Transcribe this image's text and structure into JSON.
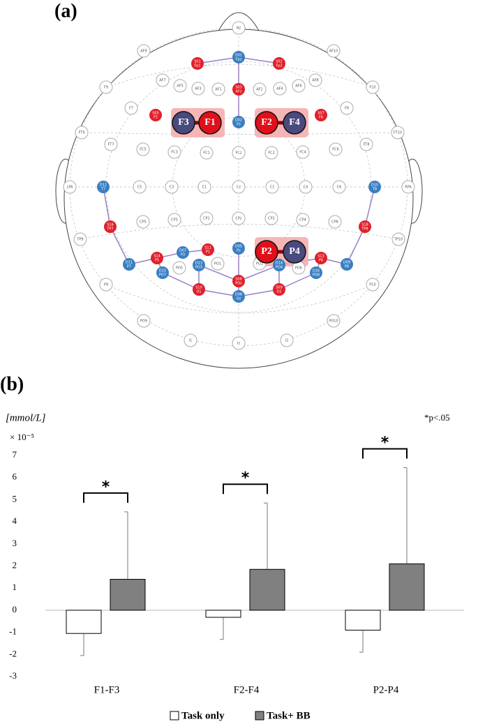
{
  "panel_a": {
    "label": "(a)",
    "nodes": [
      {
        "lines": [
          "Nz"
        ]
      },
      {
        "lines": [
          "AF9"
        ]
      },
      {
        "lines": [
          "AF10"
        ]
      },
      {
        "lines": [
          "F9"
        ]
      },
      {
        "lines": [
          "F10"
        ]
      },
      {
        "lines": [
          "AF7"
        ]
      },
      {
        "lines": [
          "AF5"
        ]
      },
      {
        "lines": [
          "AF3"
        ]
      },
      {
        "lines": [
          "AF1"
        ]
      },
      {
        "lines": [
          "AF2"
        ]
      },
      {
        "lines": [
          "AF4"
        ]
      },
      {
        "lines": [
          "AF6"
        ]
      },
      {
        "lines": [
          "AF8"
        ]
      },
      {
        "lines": [
          "F7"
        ]
      },
      {
        "lines": [
          "F8"
        ]
      },
      {
        "lines": [
          "FT9"
        ]
      },
      {
        "lines": [
          "FT10"
        ]
      },
      {
        "lines": [
          "FT7"
        ]
      },
      {
        "lines": [
          "FC5"
        ]
      },
      {
        "lines": [
          "FC3"
        ]
      },
      {
        "lines": [
          "FC1"
        ]
      },
      {
        "lines": [
          "FCz"
        ]
      },
      {
        "lines": [
          "FC2"
        ]
      },
      {
        "lines": [
          "FC4"
        ]
      },
      {
        "lines": [
          "FC6"
        ]
      },
      {
        "lines": [
          "FT8"
        ]
      },
      {
        "lines": [
          "LPA"
        ]
      },
      {
        "lines": [
          "C5"
        ]
      },
      {
        "lines": [
          "C3"
        ]
      },
      {
        "lines": [
          "C1"
        ]
      },
      {
        "lines": [
          "Cz"
        ]
      },
      {
        "lines": [
          "C2"
        ]
      },
      {
        "lines": [
          "C4"
        ]
      },
      {
        "lines": [
          "C6"
        ]
      },
      {
        "lines": [
          "RPA"
        ]
      },
      {
        "lines": [
          "TP9"
        ]
      },
      {
        "lines": [
          "CP5"
        ]
      },
      {
        "lines": [
          "CP3"
        ]
      },
      {
        "lines": [
          "CP1"
        ]
      },
      {
        "lines": [
          "CPz"
        ]
      },
      {
        "lines": [
          "CP2"
        ]
      },
      {
        "lines": [
          "CP4"
        ]
      },
      {
        "lines": [
          "CP6"
        ]
      },
      {
        "lines": [
          "TP10"
        ]
      },
      {
        "lines": [
          "P9"
        ]
      },
      {
        "lines": [
          "P10"
        ]
      },
      {
        "lines": [
          "PO5"
        ]
      },
      {
        "lines": [
          "PO1"
        ]
      },
      {
        "lines": [
          "PO2"
        ]
      },
      {
        "lines": [
          "PO6"
        ]
      },
      {
        "lines": [
          "PO9"
        ]
      },
      {
        "lines": [
          "PO10"
        ]
      },
      {
        "lines": [
          "I1"
        ]
      },
      {
        "lines": [
          "Iz"
        ]
      },
      {
        "lines": [
          "I2"
        ]
      },
      {
        "lines": [
          "S01",
          "Fp1"
        ]
      },
      {
        "lines": [
          "S02",
          "Fp2"
        ]
      },
      {
        "lines": [
          "S03",
          "AFz"
        ]
      },
      {
        "lines": [
          "S05",
          "F5"
        ]
      },
      {
        "lines": [
          "S07",
          "F6"
        ]
      },
      {
        "lines": [
          "S11",
          "P1"
        ]
      },
      {
        "lines": [
          "S14",
          "P5"
        ]
      },
      {
        "lines": [
          "S13",
          "P6"
        ]
      },
      {
        "lines": [
          "S16",
          "TP7"
        ]
      },
      {
        "lines": [
          "S18",
          "TP8"
        ]
      },
      {
        "lines": [
          "S08",
          "POz"
        ]
      },
      {
        "lines": [
          "S10",
          "O1"
        ]
      },
      {
        "lines": [
          "S09",
          "O2"
        ]
      },
      {
        "lines": [
          "D01",
          "Fpz"
        ]
      },
      {
        "lines": [
          "D02",
          "Fz"
        ]
      },
      {
        "lines": [
          "D12",
          "T7"
        ]
      },
      {
        "lines": [
          "D10",
          "T8"
        ]
      },
      {
        "lines": [
          "D07",
          "P3"
        ]
      },
      {
        "lines": [
          "D05",
          "Pz"
        ]
      },
      {
        "lines": [
          "D11",
          "P7"
        ]
      },
      {
        "lines": [
          "D09",
          "P8"
        ]
      },
      {
        "lines": [
          "D15",
          "PO7"
        ]
      },
      {
        "lines": [
          "D13",
          "PO3"
        ]
      },
      {
        "lines": [
          "D14",
          "PO4"
        ]
      },
      {
        "lines": [
          "D16",
          "PO8"
        ]
      },
      {
        "lines": [
          "D06",
          "Oz"
        ]
      }
    ],
    "channels": [
      "F3",
      "F1",
      "F2",
      "F4",
      "P2",
      "P4"
    ]
  },
  "chart_data": {
    "type": "bar",
    "panel_label": "(b)",
    "y_unit": "[mmol/L]",
    "y_scale": "× 10⁻⁵",
    "note": "*p<.05",
    "categories": [
      "F1-F3",
      "F2-F4",
      "P2-P4"
    ],
    "series": [
      {
        "name": "Task only",
        "color": "#ffffff",
        "values": [
          -1.05,
          -0.32,
          -0.9
        ],
        "errors": [
          1.0,
          1.0,
          1.0
        ]
      },
      {
        "name": "Task+ BB",
        "color": "#808080",
        "values": [
          1.4,
          1.85,
          2.1
        ],
        "errors": [
          3.05,
          3.0,
          4.35
        ]
      }
    ],
    "significance": [
      "*",
      "*",
      "*"
    ],
    "ylim": [
      -3,
      7
    ],
    "yticks": [
      -3,
      -2,
      -1,
      0,
      1,
      2,
      3,
      4,
      5,
      6,
      7
    ],
    "legend": "bottom"
  }
}
